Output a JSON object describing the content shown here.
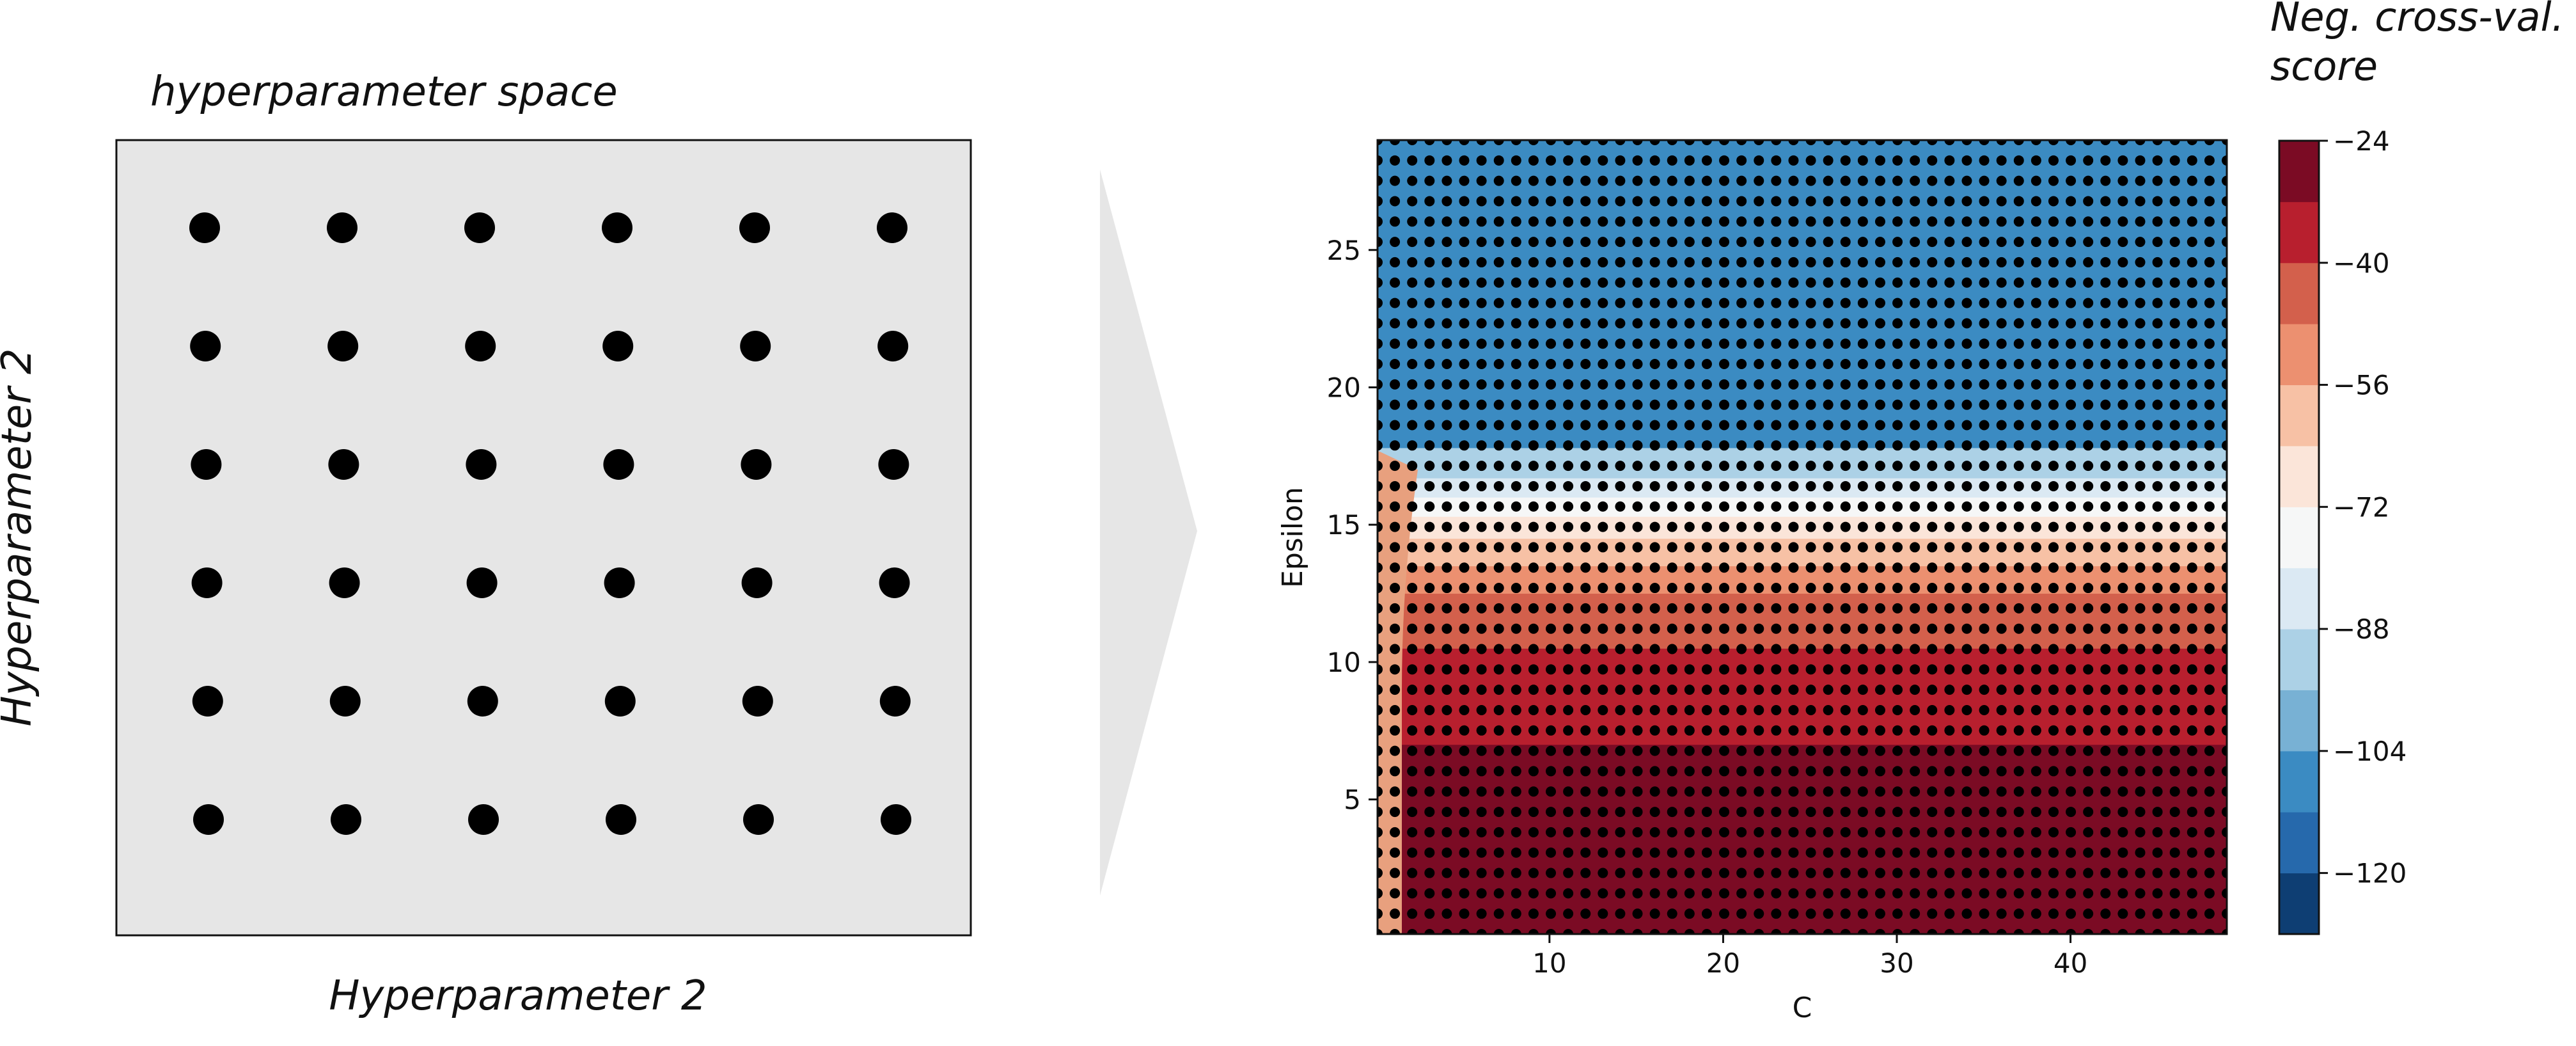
{
  "left_panel": {
    "title": "hyperparameter space",
    "xlabel": "Hyperparameter 2",
    "ylabel": "Hyperparameter 2",
    "grid_rows": 6,
    "grid_cols": 6,
    "background_color": "#e6e6e6",
    "point_color": "#000000"
  },
  "arrow": {
    "color": "#e6e6e6"
  },
  "chart_data": {
    "type": "heatmap",
    "subtype": "filled-contour with sample points",
    "xlabel": "C",
    "ylabel": "Epsilon",
    "xlim": [
      0.1,
      49
    ],
    "ylim": [
      0.1,
      29
    ],
    "x_ticks": [
      10,
      20,
      30,
      40
    ],
    "y_ticks": [
      5,
      10,
      15,
      20,
      25
    ],
    "grid": false,
    "sample_points": {
      "x_count": 50,
      "y_count": 40,
      "x_range": [
        0.1,
        49
      ],
      "y_range": [
        0.1,
        29
      ],
      "color": "#000000"
    },
    "contour_bands_by_epsilon": [
      {
        "epsilon_from": 0,
        "epsilon_to": 7,
        "score_band": [
          -32,
          -24
        ],
        "color": "#7b0b24"
      },
      {
        "epsilon_from": 7,
        "epsilon_to": 10.5,
        "score_band": [
          -40,
          -32
        ],
        "color": "#b81f2e"
      },
      {
        "epsilon_from": 10.5,
        "epsilon_to": 12.5,
        "score_band": [
          -48,
          -40
        ],
        "color": "#d3604c"
      },
      {
        "epsilon_from": 12.5,
        "epsilon_to": 13.5,
        "score_band": [
          -56,
          -48
        ],
        "color": "#ec9070"
      },
      {
        "epsilon_from": 13.5,
        "epsilon_to": 14.5,
        "score_band": [
          -64,
          -56
        ],
        "color": "#f7c1a5"
      },
      {
        "epsilon_from": 14.5,
        "epsilon_to": 15.3,
        "score_band": [
          -72,
          -64
        ],
        "color": "#fbe5d9"
      },
      {
        "epsilon_from": 15.3,
        "epsilon_to": 16.0,
        "score_band": [
          -80,
          -72
        ],
        "color": "#f6f7f7"
      },
      {
        "epsilon_from": 16.0,
        "epsilon_to": 16.7,
        "score_band": [
          -88,
          -80
        ],
        "color": "#dbe9f3"
      },
      {
        "epsilon_from": 16.7,
        "epsilon_to": 17.8,
        "score_band": [
          -96,
          -88
        ],
        "color": "#acd1e6"
      },
      {
        "epsilon_from": 17.8,
        "epsilon_to": 29,
        "score_band": [
          -104,
          -96
        ],
        "color": "#3b8bc2"
      }
    ],
    "low_c_region": {
      "c_below": 1.5,
      "epsilon_below": 17,
      "color": "#e8a07e"
    },
    "colorbar": {
      "label_line1": "Neg. cross-val.",
      "label_line2": "score",
      "ticks": [
        -24,
        -40,
        -56,
        -72,
        -88,
        -104,
        -120
      ],
      "range": [
        -128,
        -24
      ],
      "colors": [
        "#0e3e73",
        "#2669ac",
        "#3b8bc2",
        "#78b1d4",
        "#acd1e6",
        "#dbe9f3",
        "#f6f7f7",
        "#fbe5d9",
        "#f7c1a5",
        "#ec9070",
        "#d3604c",
        "#b81f2e",
        "#7b0b24"
      ]
    }
  }
}
